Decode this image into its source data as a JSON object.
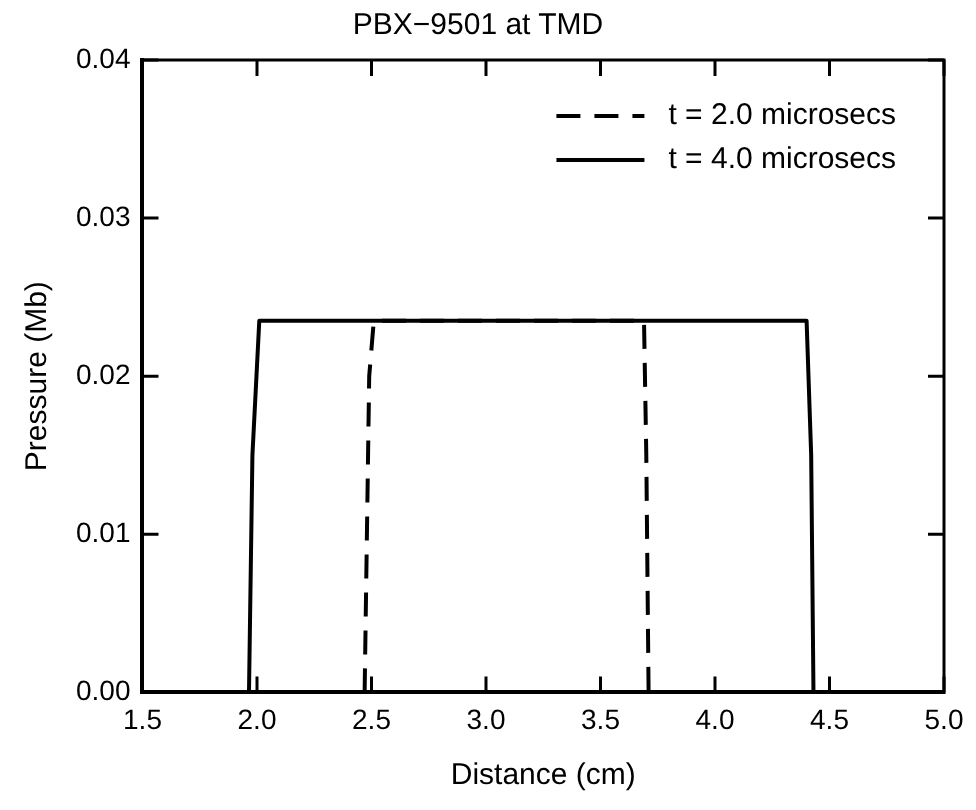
{
  "chart_data": {
    "type": "line",
    "title": "PBX−9501 at TMD",
    "xlabel": "Distance (cm)",
    "ylabel": "Pressure (Mb)",
    "xlim": [
      1.5,
      5.0
    ],
    "xticks": [
      {
        "value": 1.5,
        "label": "1.5"
      },
      {
        "value": 2.0,
        "label": "2.0"
      },
      {
        "value": 2.5,
        "label": "2.5"
      },
      {
        "value": 3.0,
        "label": "3.0"
      },
      {
        "value": 3.5,
        "label": "3.5"
      },
      {
        "value": 4.0,
        "label": "4.0"
      },
      {
        "value": 4.5,
        "label": "4.5"
      },
      {
        "value": 5.0,
        "label": "5.0"
      }
    ],
    "ylim": [
      0,
      0.04
    ],
    "yticks": [
      {
        "value": 0,
        "label": "0.00"
      },
      {
        "value": 0.01,
        "label": "0.01"
      },
      {
        "value": 0.02,
        "label": "0.02"
      },
      {
        "value": 0.03,
        "label": "0.03"
      },
      {
        "value": 0.04,
        "label": "0.04"
      }
    ],
    "grid": false,
    "legend": "top right",
    "marker": "none",
    "series": [
      {
        "name": "t = 2.0 microsecs",
        "color": "#000000",
        "line_style": "dashed",
        "x": [
          2.47,
          2.49,
          2.51,
          3.69,
          3.7,
          3.71
        ],
        "values": [
          0,
          0.02,
          0.0235,
          0.0235,
          0.015,
          0
        ]
      },
      {
        "name": "t = 4.0 microsecs",
        "color": "#000000",
        "line_style": "solid",
        "x": [
          1.965,
          1.98,
          2.01,
          4.4,
          4.42,
          4.43
        ],
        "values": [
          0,
          0.015,
          0.0235,
          0.0235,
          0.015,
          0
        ]
      }
    ]
  }
}
